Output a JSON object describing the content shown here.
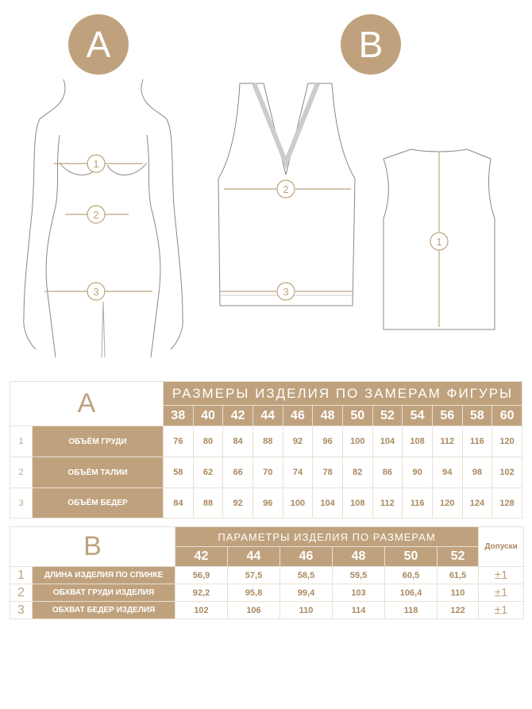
{
  "badges": {
    "a": "A",
    "b": "B"
  },
  "markers": {
    "one": "1",
    "two": "2",
    "three": "3"
  },
  "table_a": {
    "letter": "A",
    "title": "РАЗМЕРЫ ИЗДЕЛИЯ ПО ЗАМЕРАМ ФИГУРЫ",
    "sizes": [
      "38",
      "40",
      "42",
      "44",
      "46",
      "48",
      "50",
      "52",
      "54",
      "56",
      "58",
      "60"
    ],
    "rows": [
      {
        "n": "1",
        "label": "ОБЪЁМ ГРУДИ",
        "values": [
          "76",
          "80",
          "84",
          "88",
          "92",
          "96",
          "100",
          "104",
          "108",
          "112",
          "116",
          "120"
        ]
      },
      {
        "n": "2",
        "label": "ОБЪЁМ ТАЛИИ",
        "values": [
          "58",
          "62",
          "66",
          "70",
          "74",
          "78",
          "82",
          "86",
          "90",
          "94",
          "98",
          "102"
        ]
      },
      {
        "n": "3",
        "label": "ОБЪЁМ БЕДЕР",
        "values": [
          "84",
          "88",
          "92",
          "96",
          "100",
          "104",
          "108",
          "112",
          "116",
          "120",
          "124",
          "128"
        ]
      }
    ]
  },
  "table_b": {
    "letter": "B",
    "title": "ПАРАМЕТРЫ ИЗДЕЛИЯ ПО РАЗМЕРАМ",
    "tolerance_header": "Допуски",
    "sizes": [
      "42",
      "44",
      "46",
      "48",
      "50",
      "52"
    ],
    "rows": [
      {
        "n": "1",
        "label": "ДЛИНА ИЗДЕЛИЯ ПО СПИНКЕ",
        "values": [
          "56,9",
          "57,5",
          "58,5",
          "59,5",
          "60,5",
          "61,5"
        ],
        "tol": "±1"
      },
      {
        "n": "2",
        "label": "ОБХВАТ ГРУДИ ИЗДЕЛИЯ",
        "values": [
          "92,2",
          "95,8",
          "99,4",
          "103",
          "106,4",
          "110"
        ],
        "tol": "±1"
      },
      {
        "n": "3",
        "label": "ОБХВАТ БЕДЕР ИЗДЕЛИЯ",
        "values": [
          "102",
          "106",
          "110",
          "114",
          "118",
          "122"
        ],
        "tol": "±1"
      }
    ]
  },
  "colors": {
    "accent": "#bfa27d",
    "border": "#e9e0d4"
  }
}
